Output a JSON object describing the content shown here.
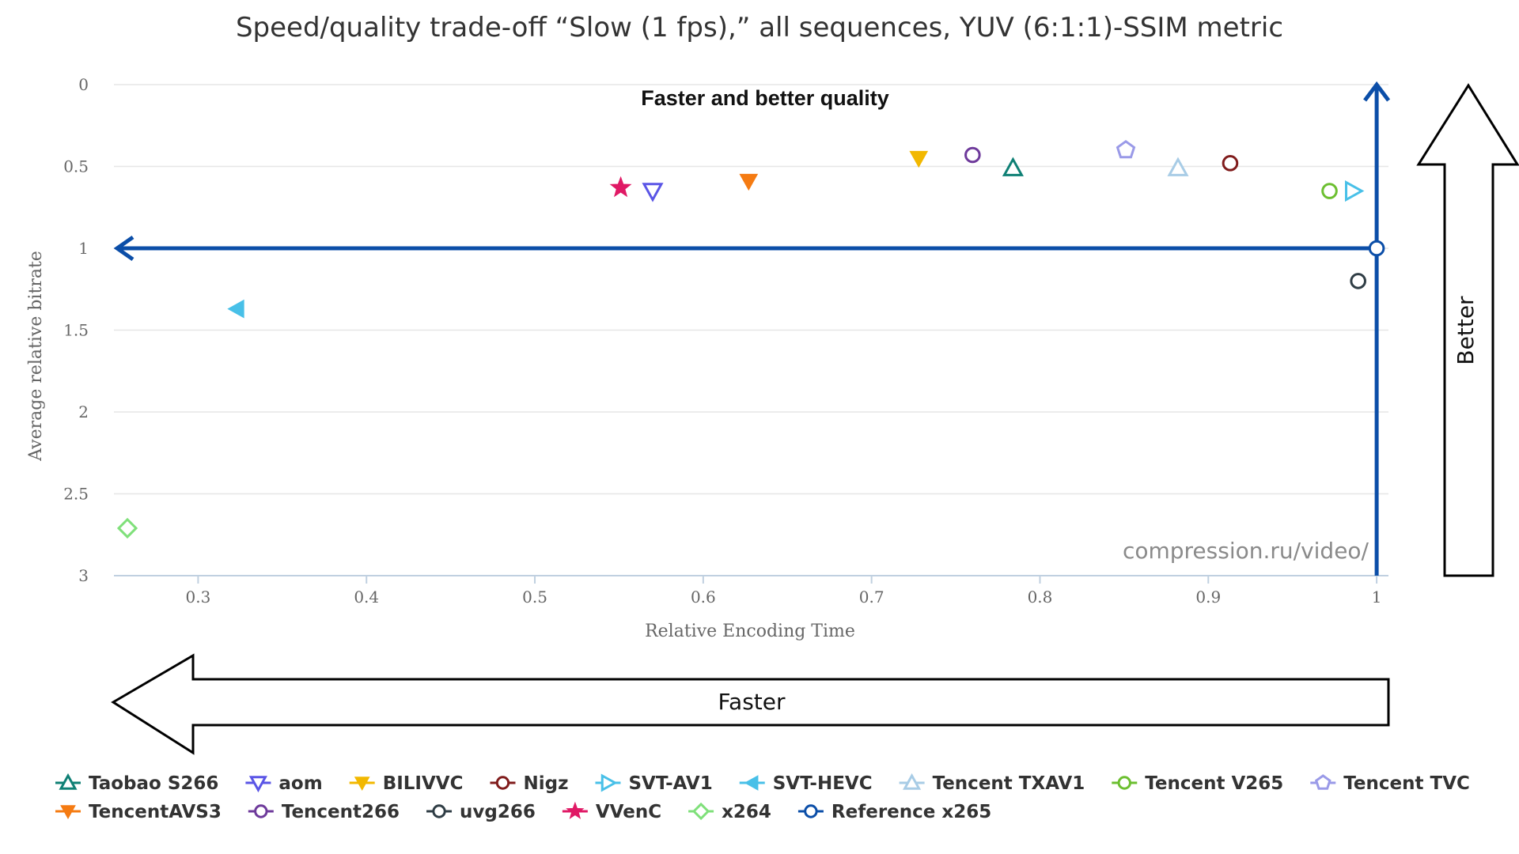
{
  "chart_data": {
    "type": "scatter",
    "title": "Speed/quality trade-off “Slow (1 fps),” all sequences, YUV (6:1:1)-SSIM metric",
    "xlabel": "Relative Encoding Time",
    "ylabel": "Average relative bitrate",
    "xlim": [
      0.25,
      1.007
    ],
    "ylim": [
      0,
      3
    ],
    "y_reversed": true,
    "x_ticks": [
      "0.3",
      "0.4",
      "0.5",
      "0.6",
      "0.7",
      "0.8",
      "0.9",
      "1"
    ],
    "y_ticks": [
      "0",
      "0.5",
      "1",
      "1.5",
      "2",
      "2.5",
      "3"
    ],
    "grid": "horizontal",
    "legend_position": "bottom",
    "annotations": {
      "top_center": "Faster and better quality",
      "watermark": "compression.ru/video/",
      "left_arrow": "Faster",
      "up_arrow": "Better"
    },
    "series": [
      {
        "name": "Taobao S266",
        "marker": "triangle-up-open",
        "color": "#0f8075",
        "x": 0.784,
        "y": 0.51
      },
      {
        "name": "aom",
        "marker": "triangle-down-open",
        "color": "#5a55e6",
        "x": 0.57,
        "y": 0.65
      },
      {
        "name": "BILIVVC",
        "marker": "triangle-down-filled",
        "color": "#f2b800",
        "x": 0.728,
        "y": 0.45
      },
      {
        "name": "Nigz",
        "marker": "circle-open",
        "color": "#801c1c",
        "x": 0.913,
        "y": 0.48
      },
      {
        "name": "SVT-AV1",
        "marker": "triangle-right-open",
        "color": "#48c0e8",
        "x": 0.986,
        "y": 0.65
      },
      {
        "name": "SVT-HEVC",
        "marker": "triangle-left-filled",
        "color": "#48c0e8",
        "x": 0.323,
        "y": 1.37
      },
      {
        "name": "Tencent TXAV1",
        "marker": "triangle-up-open",
        "color": "#a8cce6",
        "x": 0.882,
        "y": 0.51
      },
      {
        "name": "Tencent V265",
        "marker": "circle-open",
        "color": "#6cbf30",
        "x": 0.972,
        "y": 0.65
      },
      {
        "name": "Tencent TVC",
        "marker": "pentagon-open",
        "color": "#9a9ae8",
        "x": 0.851,
        "y": 0.4
      },
      {
        "name": "TencentAVS3",
        "marker": "triangle-down-filled",
        "color": "#f57b12",
        "x": 0.627,
        "y": 0.59
      },
      {
        "name": "Tencent266",
        "marker": "circle-open",
        "color": "#6e3a9b",
        "x": 0.76,
        "y": 0.43
      },
      {
        "name": "uvg266",
        "marker": "circle-open",
        "color": "#2f3d45",
        "x": 0.989,
        "y": 1.2
      },
      {
        "name": "VVenC",
        "marker": "star-filled",
        "color": "#e01965",
        "x": 0.551,
        "y": 0.63
      },
      {
        "name": "x264",
        "marker": "diamond-open",
        "color": "#7fe07a",
        "x": 0.258,
        "y": 2.71
      },
      {
        "name": "Reference x265",
        "marker": "circle-open",
        "color": "#0b4ea8",
        "x": 1.0,
        "y": 1.0
      }
    ]
  }
}
